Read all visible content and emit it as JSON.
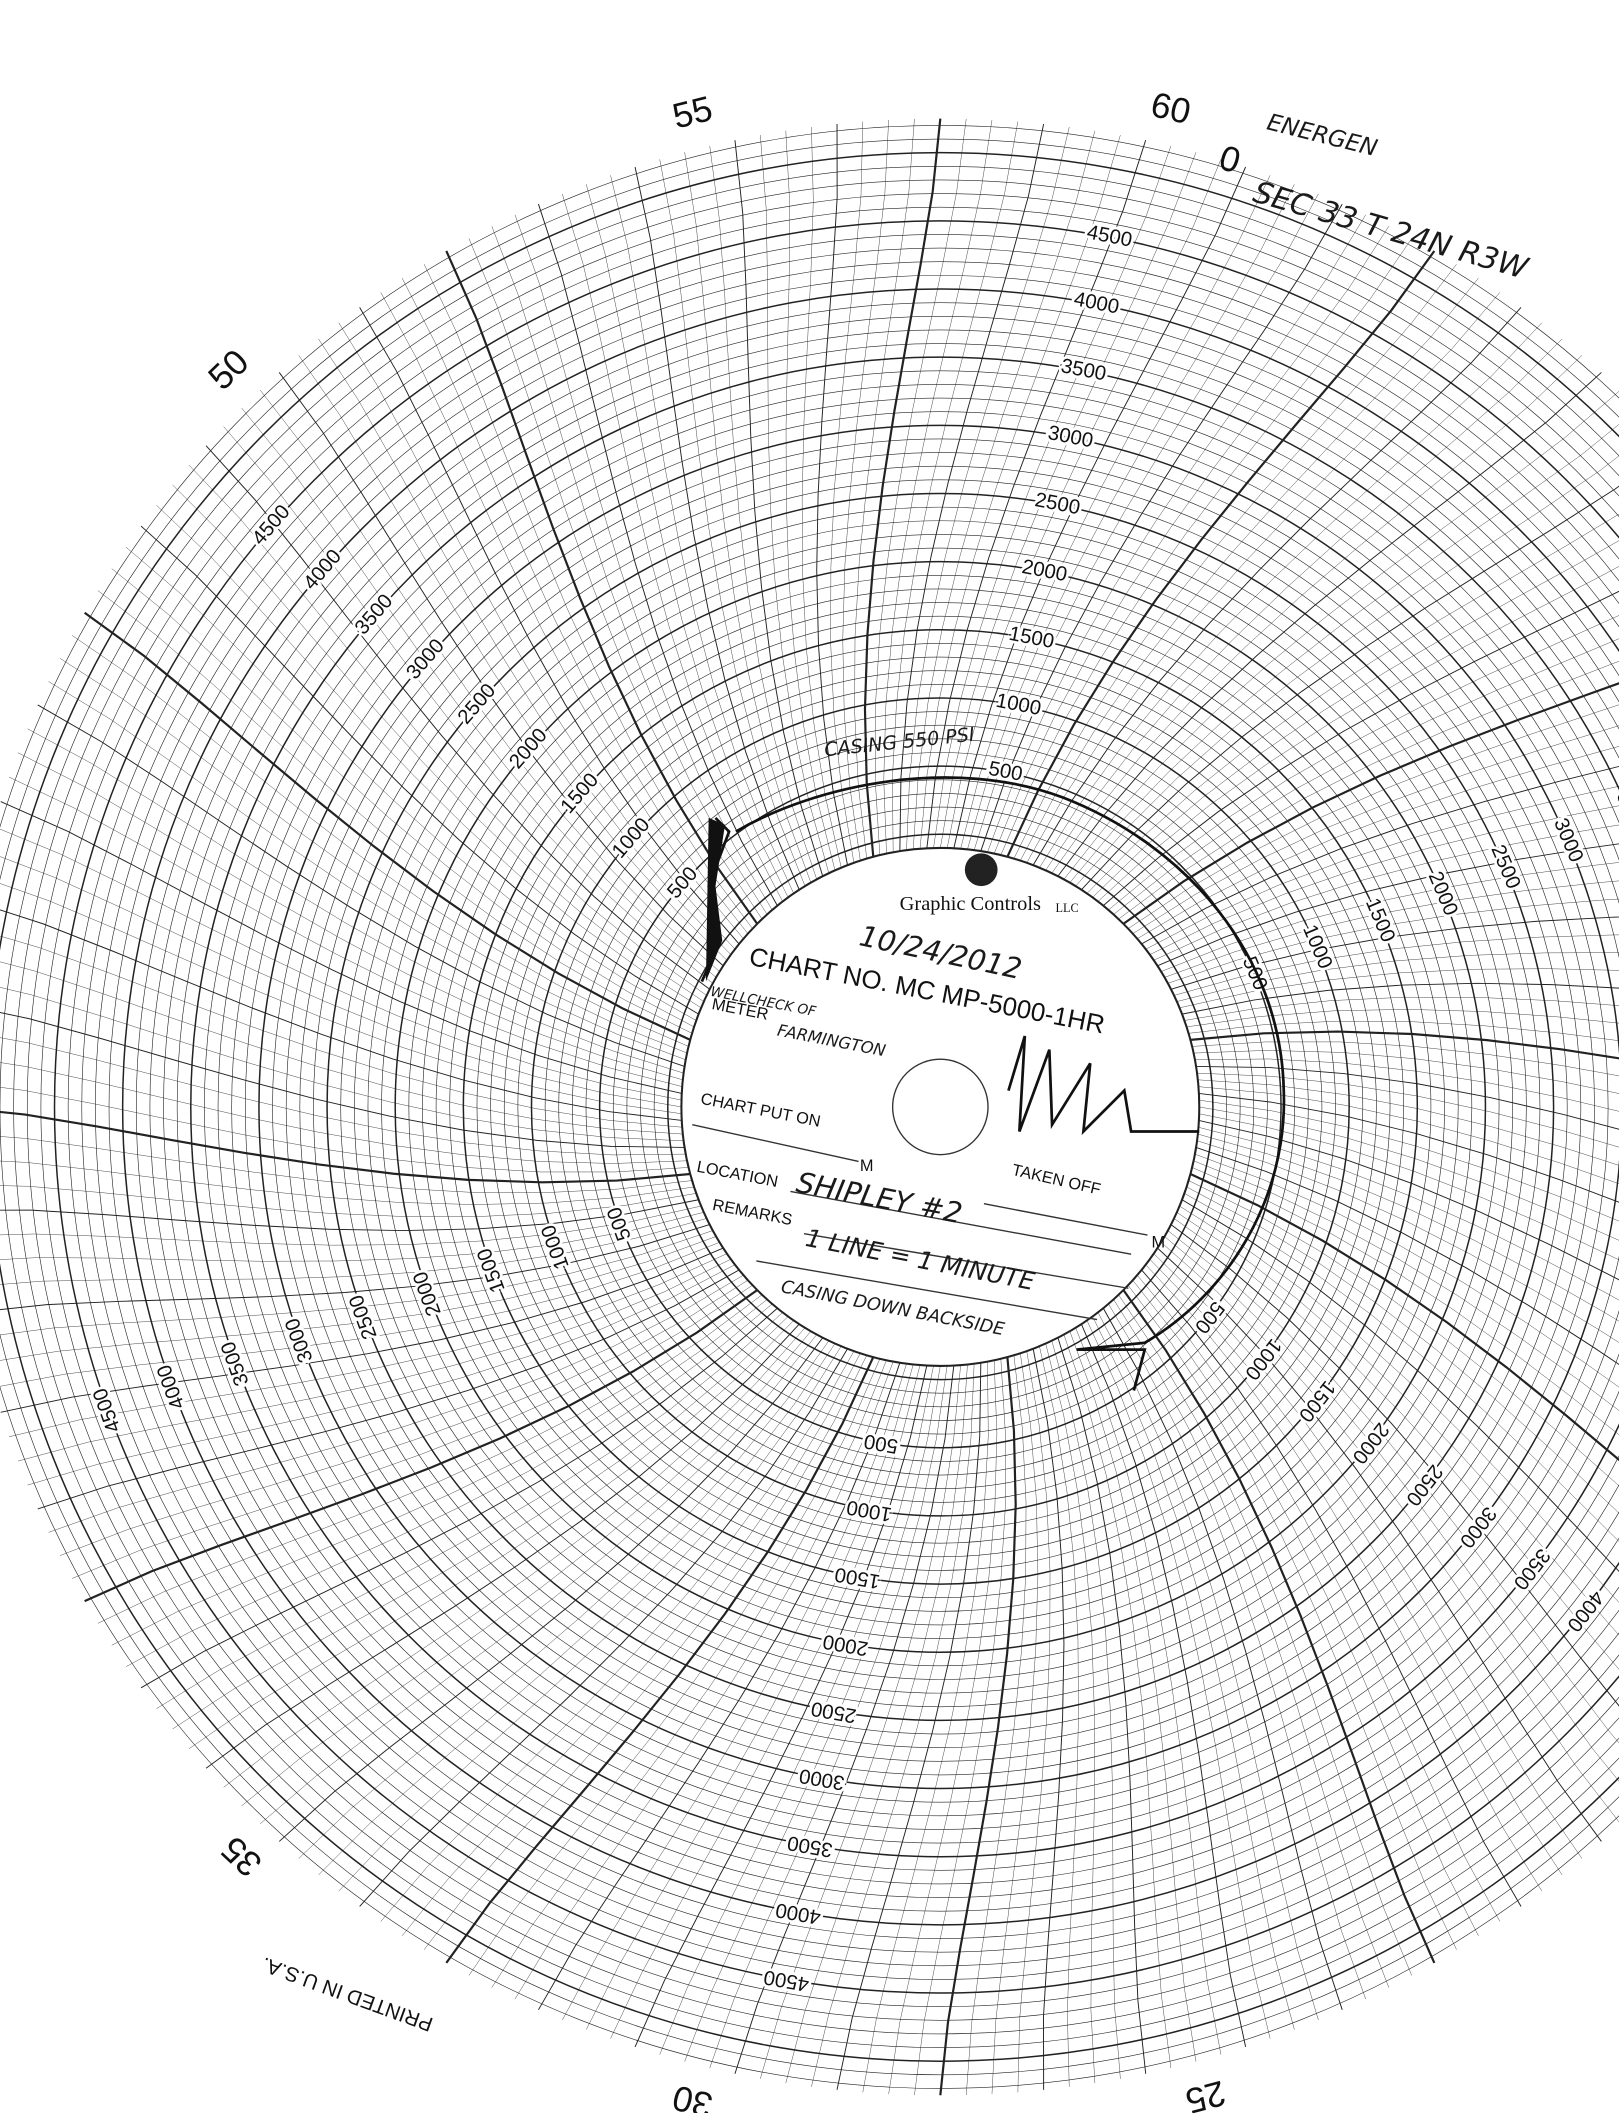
{
  "chart_face": {
    "minutes": [
      60,
      0,
      55,
      50,
      35,
      30,
      25
    ],
    "pressure_scale": [
      500,
      1000,
      1500,
      2000,
      2500,
      3000,
      3500,
      4000,
      4500
    ]
  },
  "center_label": {
    "brand": "Graphic Controls",
    "brand_suffix": "LLC",
    "chart_no": "CHART NO. MC MP-5000-1HR",
    "meter": "METER",
    "chart_put_on": "CHART PUT ON",
    "m": "M",
    "location": "LOCATION",
    "taken_off": "TAKEN OFF",
    "remarks": "REMARKS"
  },
  "handwritten": {
    "company": "ENERGEN",
    "legal": "SEC 33 T 24N R3W",
    "casing": "CASING 550 PSI",
    "date": "10/24/2012",
    "meter_by": "WELLCHECK OF",
    "meter_place": "FARMINGTON",
    "location": "SHIPLEY #2",
    "remarks_1": "1 LINE = 1 MINUTE",
    "remarks_2": "CASING DOWN BACKSIDE"
  },
  "footer": {
    "printed": "PRINTED IN U.S.A."
  }
}
